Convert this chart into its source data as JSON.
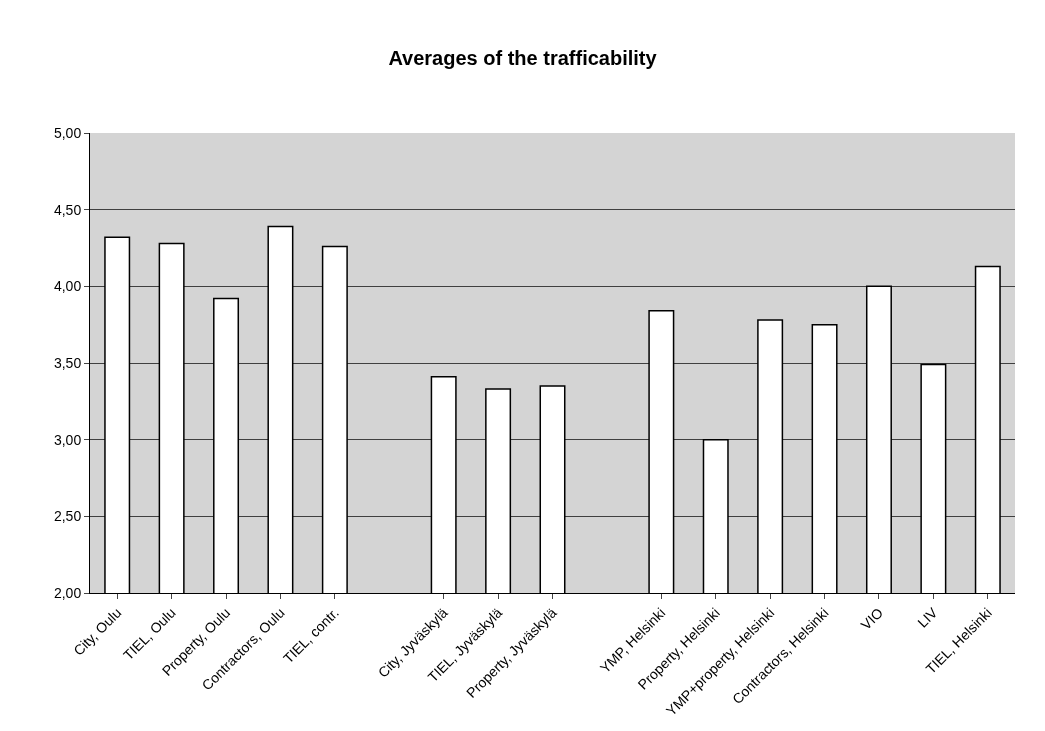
{
  "chart_data": {
    "type": "bar",
    "title": "Averages of the trafficability",
    "categories": [
      "City, Oulu",
      "TIEL, Oulu",
      "Property, Oulu",
      "Contractors, Oulu",
      "TIEL, contr.",
      null,
      "City, Jyväskylä",
      "TIEL, Jyväskylä",
      "Property, Jyväskylä",
      null,
      "YMP, Helsinki",
      "Property, Helsinki",
      "YMP+property, Helsinki",
      "Contractors, Helsinki",
      "VIO",
      "LIV",
      "TIEL, Helsinki"
    ],
    "values": [
      4.32,
      4.28,
      3.92,
      4.39,
      4.26,
      null,
      3.41,
      3.33,
      3.35,
      null,
      3.84,
      3.0,
      3.78,
      3.75,
      4.0,
      3.49,
      4.13
    ],
    "color": "#ffffff",
    "ylim": [
      2,
      5
    ],
    "yticks": [
      {
        "value": 2,
        "label": "2,00"
      },
      {
        "value": 2.5,
        "label": "2,50"
      },
      {
        "value": 3,
        "label": "3,00"
      },
      {
        "value": 3.5,
        "label": "3,50"
      },
      {
        "value": 4,
        "label": "4,00"
      },
      {
        "value": 4.5,
        "label": "4,50"
      },
      {
        "value": 5,
        "label": "5,00"
      }
    ],
    "grid": "y"
  }
}
